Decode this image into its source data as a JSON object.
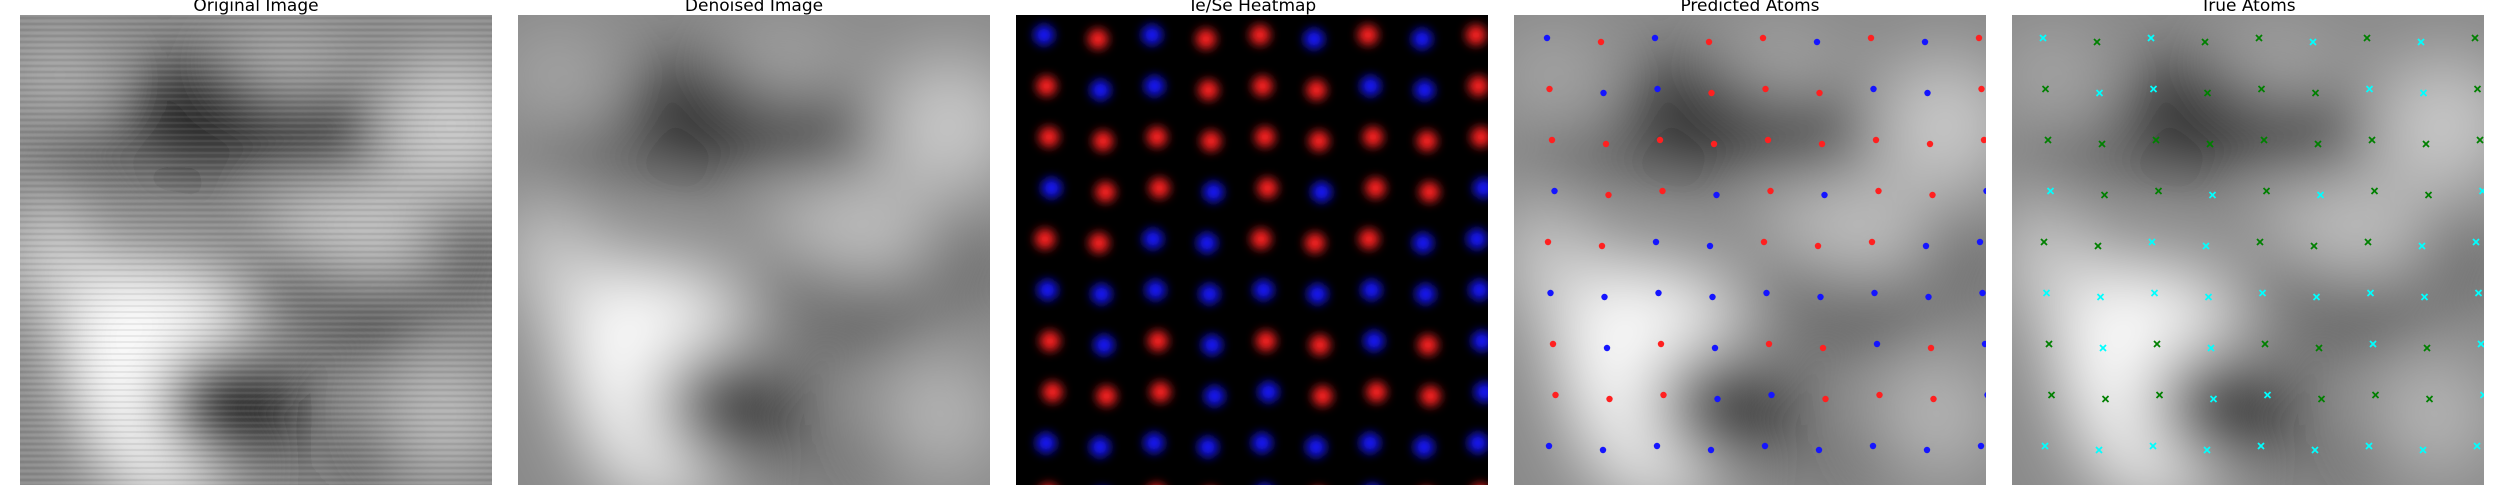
{
  "figure": {
    "panels": [
      {
        "title": "Original Image",
        "kind": "grayscale-noisy",
        "icon": "stm-image"
      },
      {
        "title": "Denoised Image",
        "kind": "grayscale-smooth",
        "icon": "stm-image"
      },
      {
        "title": "Te/Se Heatmap",
        "kind": "heatmap",
        "icon": "heatmap"
      },
      {
        "title": "Predicted Atoms",
        "kind": "overlay-predicted",
        "icon": "atom-markers"
      },
      {
        "title": "True Atoms",
        "kind": "overlay-true",
        "icon": "atom-markers"
      }
    ],
    "colors": {
      "red_atom": "#ff2020",
      "blue_atom": "#1515ff",
      "cyan_atom": "#00ffff",
      "green_atom": "#008000",
      "heatmap_bg": "#000000"
    }
  }
}
